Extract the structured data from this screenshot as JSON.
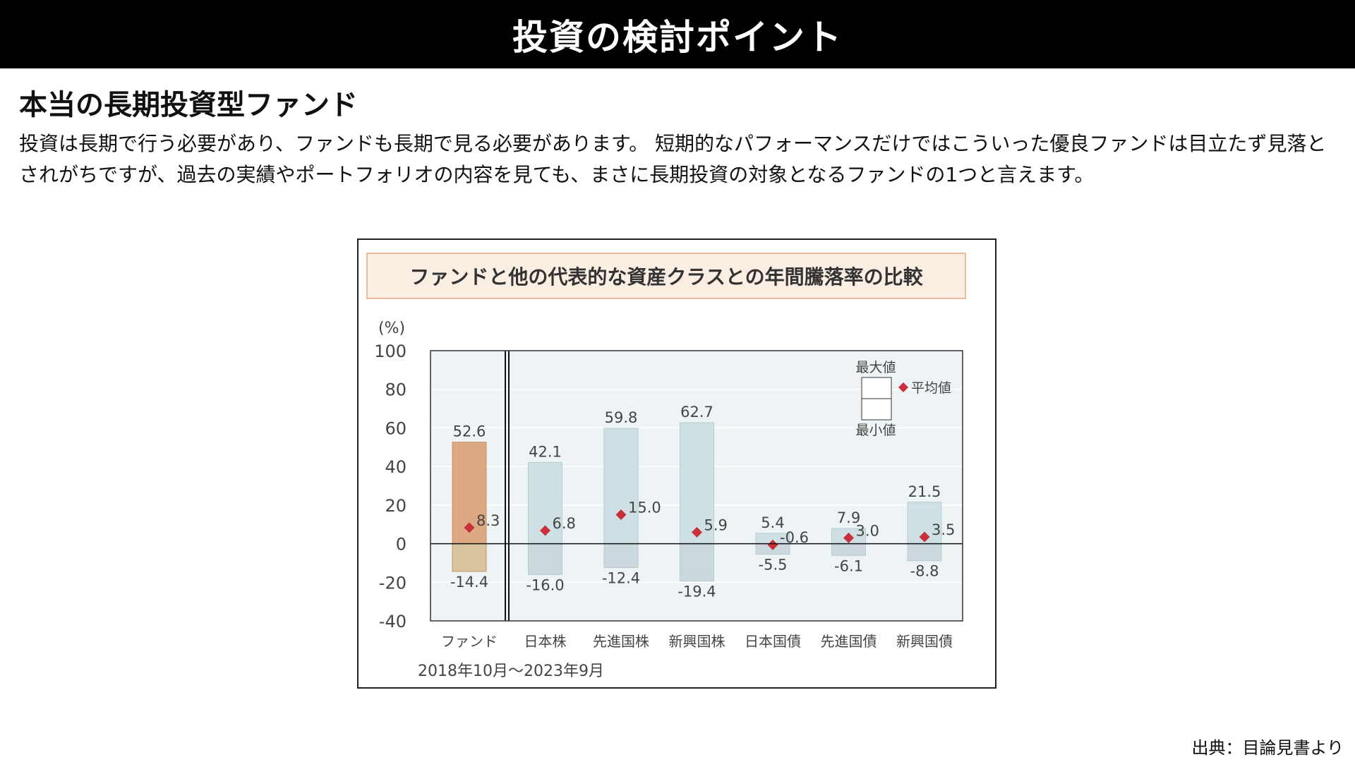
{
  "header": {
    "title": "投資の検討ポイント"
  },
  "section": {
    "heading": "本当の長期投資型ファンド",
    "body": "投資は長期で行う必要があり、ファンドも長期で見る必要があります。 短期的なパフォーマンスだけではこういった優良ファンドは目立たず見落とされがちですが、過去の実績やポートフォリオの内容を見ても、まさに長期投資の対象となるファンドの1つと言えます。"
  },
  "chart_data": {
    "type": "bar",
    "title": "ファンドと他の代表的な資産クラスとの年間騰落率の比較",
    "ylabel": "(%)",
    "ylim": [
      -40,
      100
    ],
    "yticks": [
      "100",
      "80",
      "60",
      "40",
      "20",
      "0",
      "-20",
      "-40"
    ],
    "grid": true,
    "period": "2018年10月〜2023年9月",
    "categories": [
      "ファンド",
      "日本株",
      "先進国株",
      "新興国株",
      "日本国債",
      "先進国債",
      "新興国債"
    ],
    "series": [
      {
        "name": "最大値",
        "values": [
          52.6,
          42.1,
          59.8,
          62.7,
          5.4,
          7.9,
          21.5
        ]
      },
      {
        "name": "最小値",
        "values": [
          -14.4,
          -16.0,
          -12.4,
          -19.4,
          -5.5,
          -6.1,
          -8.8
        ]
      },
      {
        "name": "平均値",
        "values": [
          8.3,
          6.8,
          15.0,
          5.9,
          -0.6,
          3.0,
          3.5
        ]
      }
    ],
    "max_labels": [
      "52.6",
      "42.1",
      "59.8",
      "62.7",
      "5.4",
      "7.9",
      "21.5"
    ],
    "min_labels": [
      "-14.4",
      "-16.0",
      "-12.4",
      "-19.4",
      "-5.5",
      "-6.1",
      "-8.8"
    ],
    "avg_labels": [
      "8.3",
      "6.8",
      "15.0",
      "5.9",
      "-0.6",
      "3.0",
      "3.5"
    ],
    "legend": {
      "max_label": "最大値",
      "min_label": "最小値",
      "avg_label": "平均値",
      "position": "top-right"
    },
    "colors": {
      "fund_bar": "#dca982",
      "fund_bar_neg": "#d9c4a0",
      "other_bar": "#cfe0e4",
      "other_bar_neg": "#cdd8de",
      "bar_border": "#b7ccd2",
      "fund_border": "#c99066",
      "avg_marker": "#c9303a",
      "title_bg": "#fbeee3",
      "title_border": "#e4a77c",
      "plot_bg": "#eef3f5"
    }
  },
  "footer": {
    "source": "出典：目論見書より"
  }
}
